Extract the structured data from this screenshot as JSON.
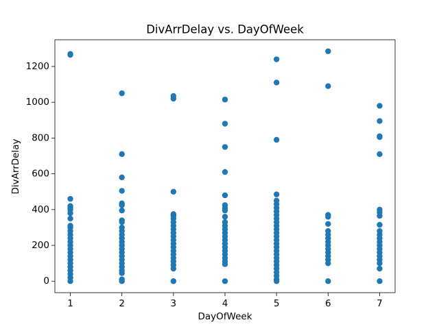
{
  "chart_data": {
    "type": "scatter",
    "title": "DivArrDelay vs. DayOfWeek",
    "x_label": "DayOfWeek",
    "y_label": "DivArrDelay",
    "color": "#1f77b4",
    "x": [
      1,
      1,
      1,
      1,
      1,
      1,
      1,
      1,
      1,
      1,
      1,
      1,
      1,
      1,
      1,
      1,
      1,
      1,
      1,
      1,
      1,
      1,
      1,
      1,
      1,
      2,
      2,
      2,
      2,
      2,
      2,
      2,
      2,
      2,
      2,
      2,
      2,
      2,
      2,
      2,
      2,
      2,
      2,
      2,
      2,
      2,
      2,
      2,
      2,
      2,
      3,
      3,
      3,
      3,
      3,
      3,
      3,
      3,
      3,
      3,
      3,
      3,
      3,
      3,
      3,
      3,
      3,
      3,
      3,
      3,
      3,
      4,
      4,
      4,
      4,
      4,
      4,
      4,
      4,
      4,
      4,
      4,
      4,
      4,
      4,
      4,
      4,
      4,
      4,
      4,
      4,
      4,
      4,
      4,
      5,
      5,
      5,
      5,
      5,
      5,
      5,
      5,
      5,
      5,
      5,
      5,
      5,
      5,
      5,
      5,
      5,
      5,
      5,
      5,
      5,
      5,
      5,
      5,
      5,
      5,
      5,
      5,
      6,
      6,
      6,
      6,
      6,
      6,
      6,
      6,
      6,
      6,
      6,
      6,
      6,
      6,
      6,
      6,
      7,
      7,
      7,
      7,
      7,
      7,
      7,
      7,
      7,
      7,
      7,
      7,
      7,
      7,
      7,
      7,
      7,
      7,
      7,
      7,
      7
    ],
    "y": [
      0,
      1270,
      1265,
      460,
      420,
      410,
      400,
      380,
      350,
      310,
      300,
      280,
      260,
      240,
      220,
      200,
      180,
      160,
      140,
      120,
      100,
      80,
      60,
      40,
      20,
      1050,
      710,
      580,
      505,
      435,
      425,
      395,
      340,
      330,
      300,
      280,
      260,
      240,
      220,
      200,
      180,
      160,
      140,
      120,
      100,
      80,
      60,
      45,
      10,
      0,
      1035,
      1020,
      500,
      375,
      365,
      350,
      330,
      310,
      290,
      270,
      250,
      230,
      210,
      190,
      170,
      150,
      130,
      110,
      90,
      70,
      0,
      1015,
      880,
      750,
      610,
      480,
      425,
      410,
      395,
      360,
      330,
      310,
      290,
      270,
      250,
      230,
      210,
      190,
      170,
      150,
      130,
      110,
      95,
      0,
      1240,
      1110,
      790,
      485,
      450,
      430,
      410,
      390,
      370,
      350,
      330,
      310,
      290,
      270,
      250,
      230,
      210,
      190,
      170,
      150,
      130,
      110,
      90,
      70,
      50,
      30,
      10,
      0,
      1285,
      1090,
      370,
      360,
      320,
      280,
      260,
      240,
      220,
      200,
      180,
      160,
      140,
      120,
      100,
      0,
      980,
      895,
      810,
      805,
      710,
      400,
      385,
      365,
      315,
      280,
      260,
      240,
      220,
      200,
      180,
      160,
      140,
      120,
      100,
      70,
      0
    ],
    "xlim": [
      0.7,
      7.3
    ],
    "ylim": [
      -64.25,
      1349.25
    ],
    "xticks": [
      1,
      2,
      3,
      4,
      5,
      6,
      7
    ],
    "yticks": [
      0,
      200,
      400,
      600,
      800,
      1000,
      1200
    ],
    "grid": false
  }
}
